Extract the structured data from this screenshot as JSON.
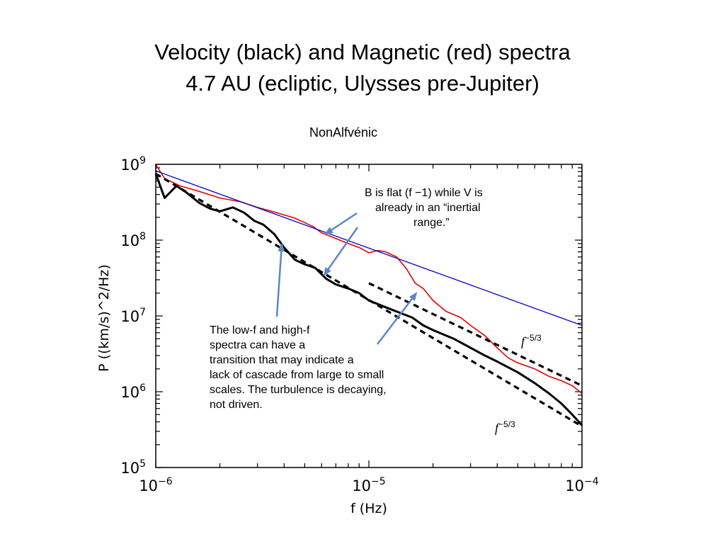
{
  "slide": {
    "title_line1": "Velocity (black) and Magnetic (red) spectra",
    "title_line2": "4.7 AU (ecliptic, Ulysses pre-Jupiter)",
    "subtitle": "NonAlfvénic"
  },
  "annotations": {
    "b_flat": [
      "B is flat (f −1) while V is",
      "already in an “inertial",
      "range.”"
    ],
    "transition": [
      "The low-f and high-f",
      "spectra can have a",
      "transition that may indicate a",
      "lack of cascade from large to small",
      "scales.  The turbulence is decaying,",
      "not driven."
    ],
    "slope_label_base": "f",
    "slope_label_exp": "−5/3"
  },
  "chart_data": {
    "type": "line",
    "xlabel": "f (Hz)",
    "ylabel": "P ((km/s)^2/Hz)",
    "xscale": "log",
    "yscale": "log",
    "xlim": [
      1e-06,
      0.0001
    ],
    "ylim": [
      100000.0,
      1000000000.0
    ],
    "x_ticks": [
      {
        "value": 1e-06,
        "base": "10",
        "exp": "−6"
      },
      {
        "value": 1e-05,
        "base": "10",
        "exp": "−5"
      },
      {
        "value": 0.0001,
        "base": "10",
        "exp": "−4"
      }
    ],
    "y_ticks": [
      {
        "value": 100000.0,
        "base": "10",
        "exp": "5"
      },
      {
        "value": 1000000.0,
        "base": "10",
        "exp": "6"
      },
      {
        "value": 10000000.0,
        "base": "10",
        "exp": "7"
      },
      {
        "value": 100000000.0,
        "base": "10",
        "exp": "8"
      },
      {
        "value": 1000000000.0,
        "base": "10",
        "exp": "9"
      }
    ],
    "series": [
      {
        "name": "Velocity",
        "color": "#000000",
        "x": [
          1e-06,
          1.1e-06,
          1.25e-06,
          1.4e-06,
          1.6e-06,
          1.8e-06,
          2e-06,
          2.3e-06,
          2.6e-06,
          2.9e-06,
          3.2e-06,
          3.6e-06,
          4e-06,
          4.5e-06,
          5e-06,
          5.6e-06,
          6.3e-06,
          7e-06,
          8e-06,
          9e-06,
          1e-05,
          1.2e-05,
          1.4e-05,
          1.6e-05,
          1.8e-05,
          2e-05,
          2.5e-05,
          3e-05,
          3.5e-05,
          4e-05,
          5e-05,
          6e-05,
          7e-05,
          8e-05,
          9e-05,
          0.0001
        ],
        "y": [
          750000000.0,
          360000000.0,
          520000000.0,
          420000000.0,
          310000000.0,
          260000000.0,
          240000000.0,
          270000000.0,
          230000000.0,
          180000000.0,
          160000000.0,
          120000000.0,
          80000000.0,
          55000000.0,
          48000000.0,
          43000000.0,
          31000000.0,
          26000000.0,
          23000000.0,
          20000000.0,
          16000000.0,
          13000000.0,
          11000000.0,
          9500000.0,
          7500000.0,
          6500000.0,
          5000000.0,
          3800000.0,
          3000000.0,
          2500000.0,
          1800000.0,
          1300000.0,
          950000.0,
          700000.0,
          500000.0,
          360000.0
        ]
      },
      {
        "name": "Magnetic",
        "color": "#e60000",
        "x": [
          1e-06,
          1.1e-06,
          1.3e-06,
          1.6e-06,
          2e-06,
          2.5e-06,
          3e-06,
          3.5e-06,
          4e-06,
          4.5e-06,
          5e-06,
          5.5e-06,
          6e-06,
          7e-06,
          8e-06,
          9e-06,
          1e-05,
          1.1e-05,
          1.2e-05,
          1.35e-05,
          1.5e-05,
          1.65e-05,
          1.8e-05,
          2e-05,
          2.3e-05,
          2.7e-05,
          3e-05,
          3.5e-05,
          4e-05,
          4.5e-05,
          5e-05,
          6e-05,
          7e-05,
          8e-05,
          9e-05,
          0.0001
        ],
        "y": [
          1000000000.0,
          650000000.0,
          520000000.0,
          440000000.0,
          360000000.0,
          320000000.0,
          270000000.0,
          240000000.0,
          215000000.0,
          195000000.0,
          170000000.0,
          150000000.0,
          125000000.0,
          105000000.0,
          90000000.0,
          80000000.0,
          68000000.0,
          73000000.0,
          70000000.0,
          60000000.0,
          42000000.0,
          27000000.0,
          23000000.0,
          16000000.0,
          11500000.0,
          9500000.0,
          7500000.0,
          5500000.0,
          3800000.0,
          2800000.0,
          2400000.0,
          2000000.0,
          1600000.0,
          1400000.0,
          1200000.0,
          950000.0
        ]
      },
      {
        "color": "#0000cc",
        "style": "solid",
        "x": [
          1e-06,
          0.0001
        ],
        "y": [
          820000000.0,
          7500000.0
        ]
      },
      {
        "color": "#000000",
        "style": "dashed",
        "x": [
          1e-06,
          0.0001
        ],
        "y": [
          750000000.0,
          350000.0
        ]
      },
      {
        "color": "#000000",
        "style": "dashed",
        "x": [
          1e-05,
          0.0001
        ],
        "y": [
          27000000.0,
          1200000.0
        ]
      }
    ]
  }
}
